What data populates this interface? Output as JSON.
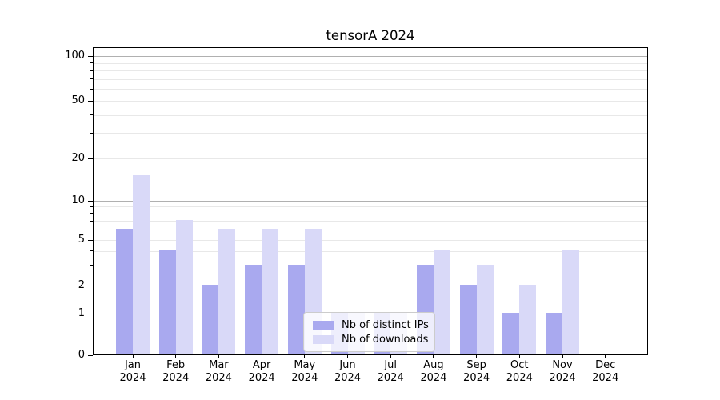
{
  "chart_data": {
    "type": "bar",
    "title": "tensorA 2024",
    "months": [
      "Jan",
      "Feb",
      "Mar",
      "Apr",
      "May",
      "Jun",
      "Jul",
      "Aug",
      "Sep",
      "Oct",
      "Nov",
      "Dec"
    ],
    "year": "2024",
    "series": [
      {
        "name": "Nb of distinct IPs",
        "color": "#a9a9ef",
        "values": [
          6,
          4,
          2,
          3,
          3,
          1,
          1,
          3,
          2,
          1,
          1,
          0
        ]
      },
      {
        "name": "Nb of downloads",
        "color": "#d9d9f8",
        "values": [
          15,
          7,
          6,
          6,
          6,
          1,
          1,
          4,
          3,
          2,
          4,
          0
        ]
      }
    ],
    "y_scale": "symlog",
    "y_ticks": [
      0,
      1,
      2,
      5,
      10,
      20,
      50,
      100
    ],
    "y_major_gridlines": [
      1,
      10,
      100
    ],
    "y_minor_gridlines": [
      2,
      3,
      4,
      5,
      6,
      7,
      8,
      9,
      20,
      30,
      40,
      50,
      60,
      70,
      80,
      90
    ],
    "ylim": [
      0,
      120
    ],
    "grid": true,
    "legend_position": "lower center"
  },
  "colors": {
    "major_grid": "#b0b0b0",
    "minor_grid": "#e8e8e8",
    "axis": "#000000",
    "legend_border": "#cccccc"
  }
}
